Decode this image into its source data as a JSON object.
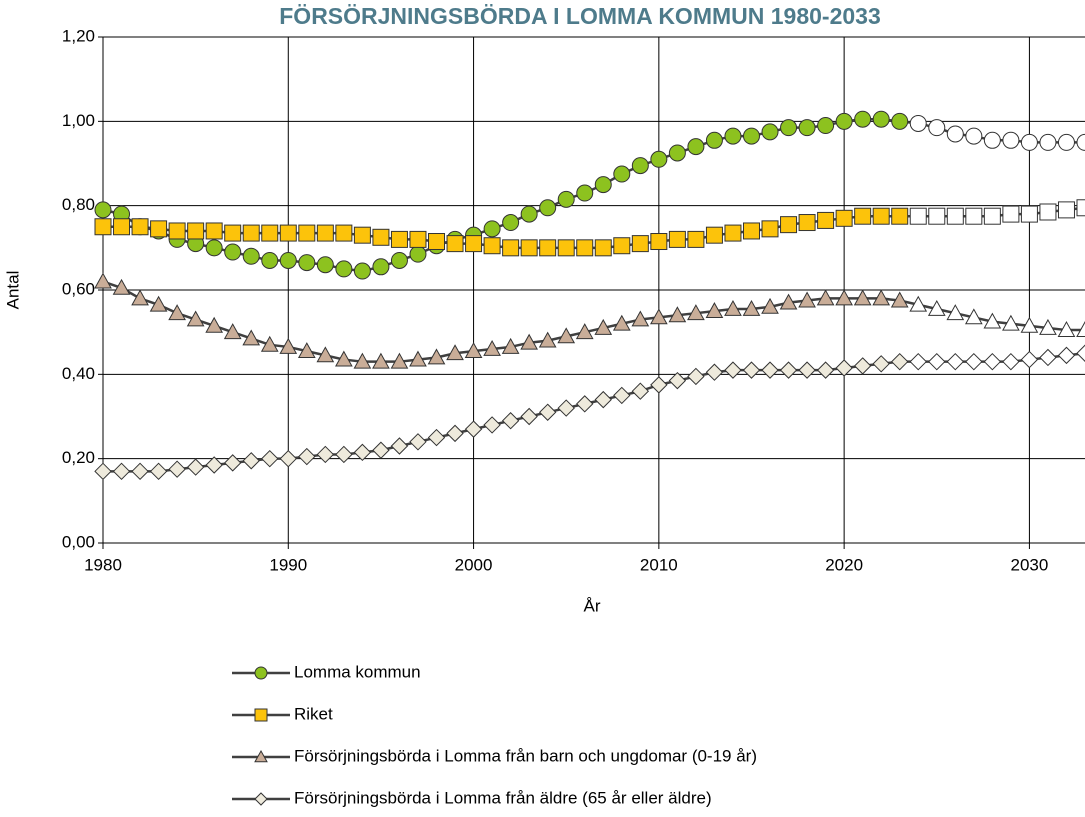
{
  "chart_data": {
    "type": "line",
    "title": "FÖRSÖRJNINGSBÖRDA I LOMMA KOMMUN 1980-2033",
    "x_label": "År",
    "y_label": "Antal",
    "x": [
      1980,
      1981,
      1982,
      1983,
      1984,
      1985,
      1986,
      1987,
      1988,
      1989,
      1990,
      1991,
      1992,
      1993,
      1994,
      1995,
      1996,
      1997,
      1998,
      1999,
      2000,
      2001,
      2002,
      2003,
      2004,
      2005,
      2006,
      2007,
      2008,
      2009,
      2010,
      2011,
      2012,
      2013,
      2014,
      2015,
      2016,
      2017,
      2018,
      2019,
      2020,
      2021,
      2022,
      2023,
      2024,
      2025,
      2026,
      2027,
      2028,
      2029,
      2030,
      2031,
      2032,
      2033
    ],
    "projection_from": 2024,
    "projection_color": "#ffffff",
    "line_color": "#404040",
    "grid": true,
    "series": [
      {
        "name": "Lomma kommun",
        "marker": "circle",
        "color": "#8dc21f",
        "values": [
          0.79,
          0.78,
          0.75,
          0.74,
          0.72,
          0.71,
          0.7,
          0.69,
          0.68,
          0.67,
          0.67,
          0.665,
          0.66,
          0.65,
          0.645,
          0.655,
          0.67,
          0.685,
          0.705,
          0.72,
          0.73,
          0.745,
          0.76,
          0.78,
          0.795,
          0.815,
          0.83,
          0.85,
          0.875,
          0.895,
          0.91,
          0.925,
          0.94,
          0.955,
          0.965,
          0.965,
          0.975,
          0.985,
          0.985,
          0.99,
          1.0,
          1.005,
          1.005,
          1.0,
          0.995,
          0.985,
          0.97,
          0.965,
          0.955,
          0.955,
          0.95,
          0.95,
          0.95,
          0.95
        ]
      },
      {
        "name": "Riket",
        "marker": "square",
        "color": "#fcc30b",
        "values": [
          0.75,
          0.75,
          0.75,
          0.745,
          0.74,
          0.74,
          0.74,
          0.735,
          0.735,
          0.735,
          0.735,
          0.735,
          0.735,
          0.735,
          0.73,
          0.725,
          0.72,
          0.72,
          0.715,
          0.71,
          0.71,
          0.705,
          0.7,
          0.7,
          0.7,
          0.7,
          0.7,
          0.7,
          0.705,
          0.71,
          0.715,
          0.72,
          0.72,
          0.73,
          0.735,
          0.74,
          0.745,
          0.755,
          0.76,
          0.765,
          0.77,
          0.775,
          0.775,
          0.775,
          0.775,
          0.775,
          0.775,
          0.775,
          0.775,
          0.78,
          0.78,
          0.785,
          0.79,
          0.795
        ]
      },
      {
        "name": "Försörjningsbörda i Lomma från barn och ungdomar (0-19 år)",
        "marker": "triangle",
        "color": "#c9ad98",
        "values": [
          0.62,
          0.605,
          0.58,
          0.565,
          0.545,
          0.53,
          0.515,
          0.5,
          0.485,
          0.47,
          0.465,
          0.455,
          0.445,
          0.435,
          0.43,
          0.43,
          0.43,
          0.435,
          0.44,
          0.45,
          0.455,
          0.46,
          0.465,
          0.475,
          0.48,
          0.49,
          0.5,
          0.51,
          0.52,
          0.53,
          0.535,
          0.54,
          0.545,
          0.55,
          0.555,
          0.555,
          0.56,
          0.57,
          0.575,
          0.58,
          0.58,
          0.58,
          0.58,
          0.575,
          0.565,
          0.555,
          0.545,
          0.535,
          0.525,
          0.52,
          0.515,
          0.51,
          0.505,
          0.505
        ]
      },
      {
        "name": "Försörjningsbörda i Lomma från äldre (65 år eller äldre)",
        "marker": "diamond",
        "color": "#eeeadc",
        "values": [
          0.17,
          0.17,
          0.17,
          0.17,
          0.175,
          0.18,
          0.185,
          0.19,
          0.195,
          0.2,
          0.2,
          0.205,
          0.21,
          0.21,
          0.215,
          0.22,
          0.23,
          0.24,
          0.25,
          0.26,
          0.27,
          0.28,
          0.29,
          0.3,
          0.31,
          0.32,
          0.33,
          0.34,
          0.35,
          0.36,
          0.375,
          0.385,
          0.395,
          0.405,
          0.41,
          0.41,
          0.41,
          0.41,
          0.41,
          0.41,
          0.415,
          0.42,
          0.425,
          0.43,
          0.43,
          0.43,
          0.43,
          0.43,
          0.43,
          0.43,
          0.435,
          0.44,
          0.445,
          0.45
        ]
      }
    ],
    "xlim": [
      1980,
      2033
    ],
    "xticks": [
      1980,
      1990,
      2000,
      2010,
      2020,
      2030
    ],
    "ylim": [
      0,
      1.2
    ],
    "yticks": [
      {
        "value": 0,
        "label": "0,00"
      },
      {
        "value": 0.2,
        "label": "0,20"
      },
      {
        "value": 0.4,
        "label": "0,40"
      },
      {
        "value": 0.6,
        "label": "0,60"
      },
      {
        "value": 0.8,
        "label": "0,80"
      },
      {
        "value": 1.0,
        "label": "1,00"
      },
      {
        "value": 1.2,
        "label": "1,20"
      }
    ]
  }
}
